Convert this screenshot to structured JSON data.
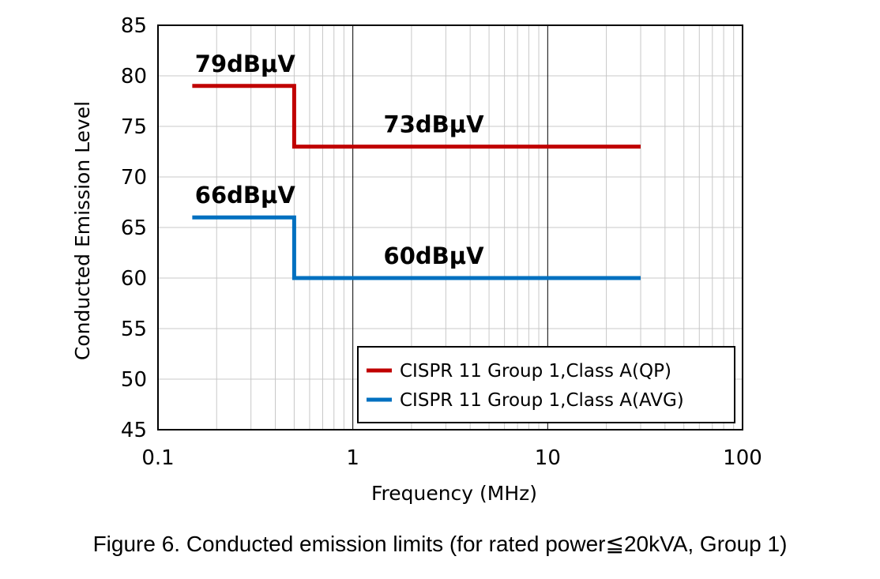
{
  "caption": "Figure 6. Conducted emission limits (for rated power≦20kVA, Group 1)",
  "chart_data": {
    "type": "line",
    "xlabel": "Frequency (MHz)",
    "ylabel": "Conducted Emission Level",
    "x_scale": "log",
    "xlim": [
      0.1,
      100
    ],
    "ylim": [
      45,
      85
    ],
    "x_ticks": [
      "0.1",
      "1",
      "10",
      "100"
    ],
    "y_ticks": [
      "45",
      "50",
      "55",
      "60",
      "65",
      "70",
      "75",
      "80",
      "85"
    ],
    "grid": true,
    "legend_position": "bottom-right",
    "series": [
      {
        "name": "CISPR 11 Group 1,Class A(QP)",
        "color": "#c00000",
        "x": [
          0.15,
          0.5,
          0.5,
          30
        ],
        "y": [
          79,
          79,
          73,
          73
        ]
      },
      {
        "name": "CISPR 11 Group 1,Class A(AVG)",
        "color": "#0070c0",
        "x": [
          0.15,
          0.5,
          0.5,
          30
        ],
        "y": [
          66,
          66,
          60,
          60
        ]
      }
    ],
    "annotations": [
      {
        "text": "79dBμV",
        "x": 0.28,
        "y": 79
      },
      {
        "text": "73dBμV",
        "x": 2.6,
        "y": 73
      },
      {
        "text": "66dBμV",
        "x": 0.28,
        "y": 66
      },
      {
        "text": "60dBμV",
        "x": 2.6,
        "y": 60
      }
    ]
  }
}
